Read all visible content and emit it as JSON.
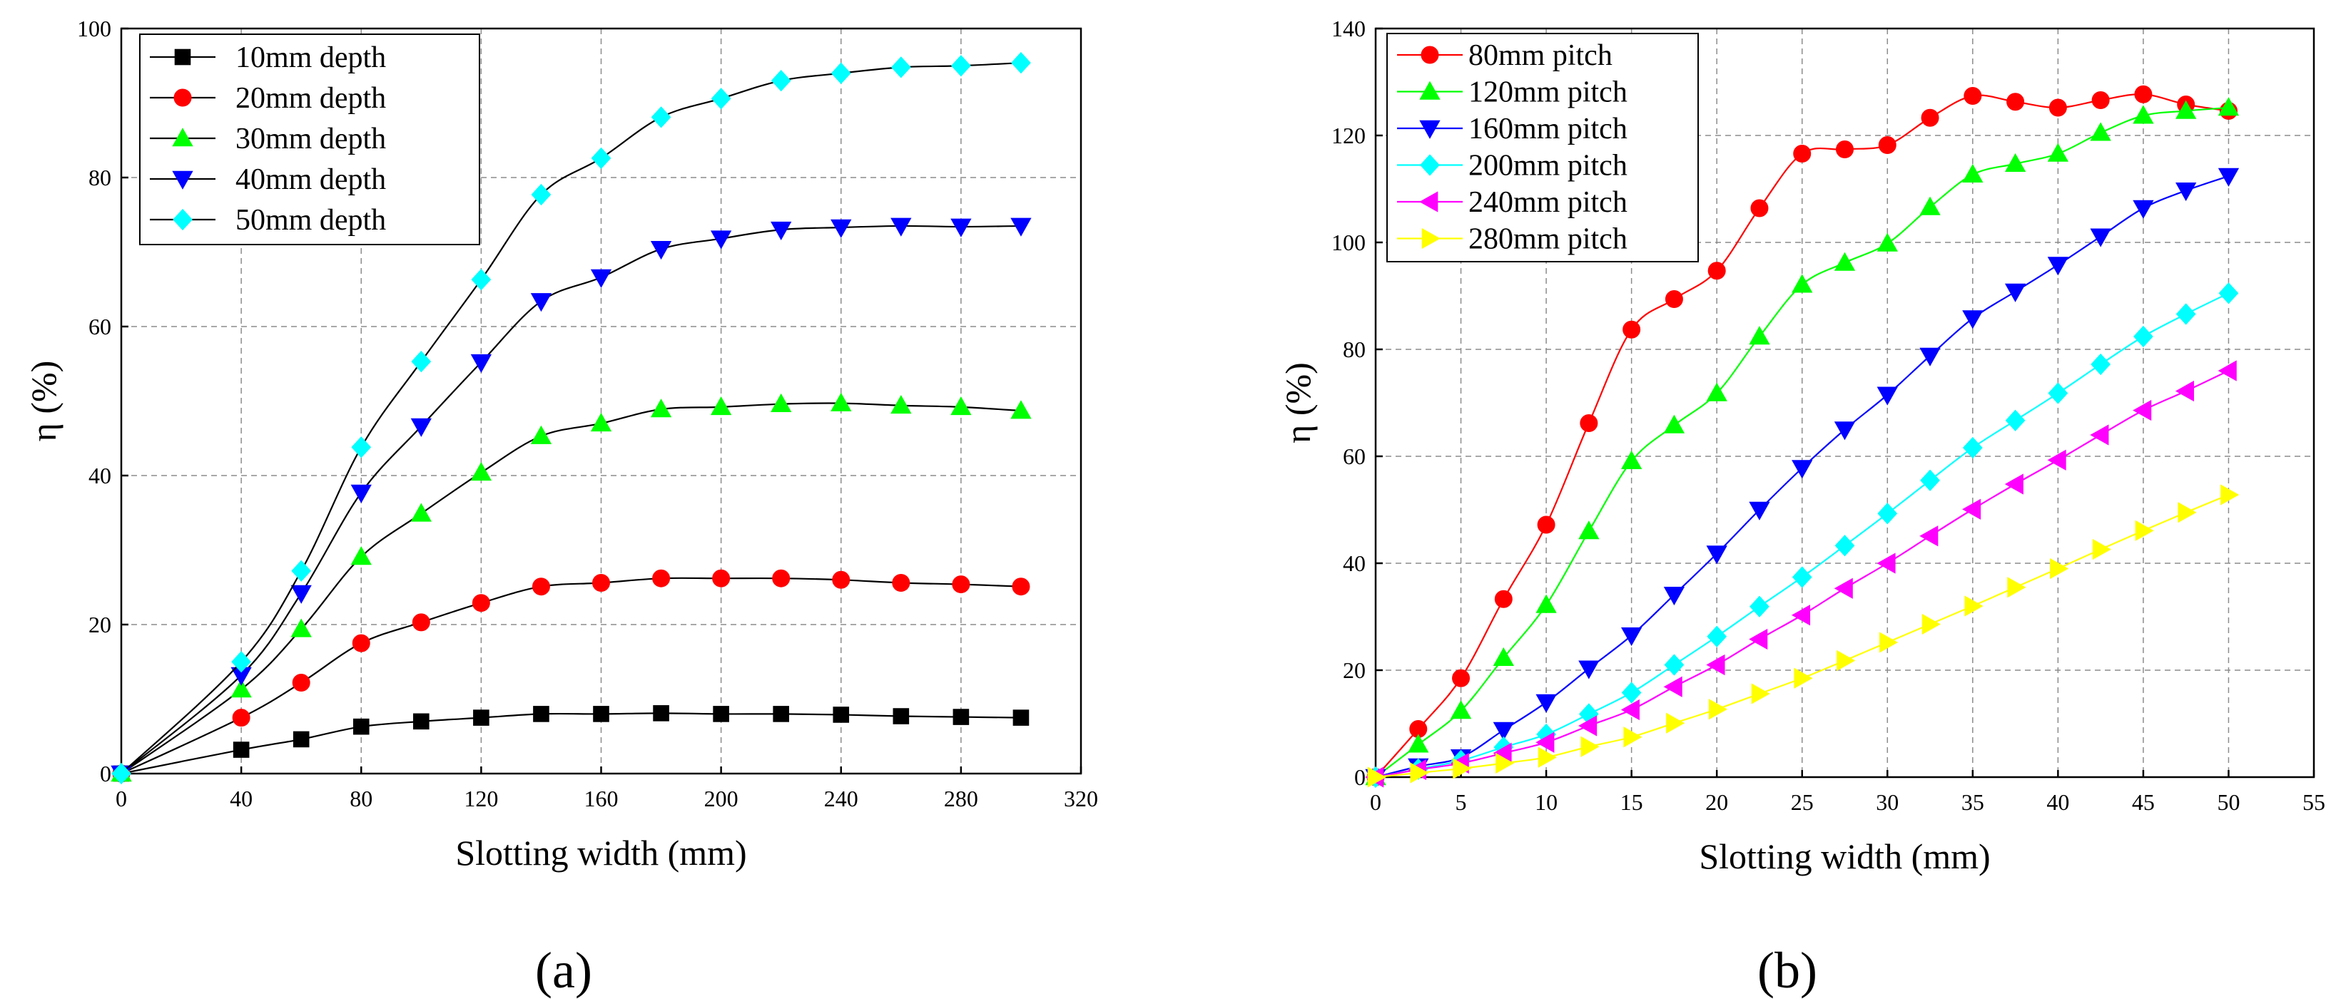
{
  "figure": {
    "panel_labels": [
      "(a)",
      "(b)"
    ]
  },
  "chart_data": [
    {
      "type": "line",
      "panel": "(a)",
      "xlabel": "Slotting width  (mm)",
      "ylabel": "η (%)",
      "xlim": [
        0,
        320
      ],
      "ylim": [
        0,
        100
      ],
      "xticks": [
        0,
        40,
        80,
        120,
        160,
        200,
        240,
        280,
        320
      ],
      "yticks": [
        0,
        20,
        40,
        60,
        80,
        100
      ],
      "grid": true,
      "legend_position": "top-left",
      "series": [
        {
          "name": "10mm  depth",
          "marker": "square",
          "color": "#000000",
          "x": [
            0,
            40,
            60,
            80,
            100,
            120,
            140,
            160,
            180,
            200,
            220,
            240,
            260,
            280,
            300
          ],
          "y": [
            0,
            3.2,
            4.6,
            6.3,
            7.0,
            7.5,
            8.0,
            8.0,
            8.1,
            8.0,
            8.0,
            7.9,
            7.7,
            7.6,
            7.5
          ]
        },
        {
          "name": "20mm  depth",
          "marker": "circle",
          "color": "#ff0000",
          "x": [
            0,
            40,
            60,
            80,
            100,
            120,
            140,
            160,
            180,
            200,
            220,
            240,
            260,
            280,
            300
          ],
          "y": [
            0,
            7.5,
            12.2,
            17.5,
            20.3,
            22.9,
            25.1,
            25.6,
            26.2,
            26.2,
            26.2,
            26.0,
            25.6,
            25.4,
            25.1
          ]
        },
        {
          "name": "30mm  depth",
          "marker": "triangle-up",
          "color": "#00ff00",
          "x": [
            0,
            40,
            60,
            80,
            100,
            120,
            140,
            160,
            180,
            200,
            220,
            240,
            260,
            280,
            300
          ],
          "y": [
            0,
            11.3,
            19.4,
            29.1,
            34.9,
            40.4,
            45.3,
            47.0,
            48.9,
            49.2,
            49.6,
            49.7,
            49.4,
            49.2,
            48.7
          ]
        },
        {
          "name": "40mm  depth",
          "marker": "triangle-down",
          "color": "#0000ff",
          "x": [
            0,
            40,
            60,
            80,
            100,
            120,
            140,
            160,
            180,
            200,
            220,
            240,
            260,
            280,
            300
          ],
          "y": [
            0,
            13.2,
            24.2,
            37.7,
            46.6,
            55.2,
            63.4,
            66.6,
            70.4,
            71.8,
            73.0,
            73.3,
            73.5,
            73.4,
            73.5
          ]
        },
        {
          "name": "50mm  depth",
          "marker": "diamond",
          "color": "#00ffff",
          "x": [
            0,
            40,
            60,
            80,
            100,
            120,
            140,
            160,
            180,
            200,
            220,
            240,
            260,
            280,
            300
          ],
          "y": [
            0,
            15.0,
            27.2,
            43.8,
            55.3,
            66.3,
            77.7,
            82.6,
            88.1,
            90.6,
            93.0,
            94.0,
            94.8,
            95.0,
            95.4
          ]
        }
      ]
    },
    {
      "type": "line",
      "panel": "(b)",
      "xlabel": "Slotting width  (mm)",
      "ylabel": "η (%)",
      "xlim": [
        0,
        55
      ],
      "ylim": [
        0,
        140
      ],
      "xticks": [
        0,
        5,
        10,
        15,
        20,
        25,
        30,
        35,
        40,
        45,
        50,
        55
      ],
      "yticks": [
        0,
        20,
        40,
        60,
        80,
        100,
        120,
        140
      ],
      "grid": true,
      "legend_position": "top-left",
      "series": [
        {
          "name": "80mm pitch",
          "marker": "circle",
          "color": "#ff0000",
          "x": [
            0,
            2.5,
            5,
            7.5,
            10,
            12.5,
            15,
            17.5,
            20,
            22.5,
            25,
            27.5,
            30,
            32.5,
            35,
            37.5,
            40,
            42.5,
            45,
            47.5,
            50
          ],
          "y": [
            0,
            9,
            18.5,
            33.3,
            47.2,
            66.2,
            83.7,
            89.4,
            94.7,
            106.4,
            116.6,
            117.4,
            118.2,
            123.3,
            127.4,
            126.3,
            125.2,
            126.6,
            127.7,
            125.8,
            124.6
          ]
        },
        {
          "name": "120mm pitch",
          "marker": "triangle-up",
          "color": "#00ff00",
          "x": [
            0,
            2.5,
            5,
            7.5,
            10,
            12.5,
            15,
            17.5,
            20,
            22.5,
            25,
            27.5,
            30,
            32.5,
            35,
            37.5,
            40,
            42.5,
            45,
            47.5,
            50
          ],
          "y": [
            0,
            6.1,
            12.4,
            22.3,
            32.2,
            46.0,
            59.1,
            65.8,
            71.8,
            82.4,
            92.1,
            96.2,
            99.8,
            106.6,
            112.7,
            114.7,
            116.6,
            120.5,
            123.7,
            124.6,
            125.2
          ]
        },
        {
          "name": "160mm pitch",
          "marker": "triangle-down",
          "color": "#0000ff",
          "x": [
            0,
            2.5,
            5,
            7.5,
            10,
            12.5,
            15,
            17.5,
            20,
            22.5,
            25,
            27.5,
            30,
            32.5,
            35,
            37.5,
            40,
            42.5,
            45,
            47.5,
            50
          ],
          "y": [
            0,
            2.0,
            3.7,
            8.8,
            14.0,
            20.3,
            26.5,
            34.1,
            41.8,
            50.0,
            57.8,
            65.0,
            71.5,
            78.8,
            85.8,
            90.8,
            95.8,
            101.1,
            106.4,
            109.7,
            112.4
          ]
        },
        {
          "name": "200mm pitch",
          "marker": "diamond",
          "color": "#00ffff",
          "x": [
            0,
            2.5,
            5,
            7.5,
            10,
            12.5,
            15,
            17.5,
            20,
            22.5,
            25,
            27.5,
            30,
            32.5,
            35,
            37.5,
            40,
            42.5,
            45,
            47.5,
            50
          ],
          "y": [
            0,
            1.5,
            3.1,
            5.6,
            8.0,
            11.8,
            15.8,
            21.0,
            26.3,
            31.9,
            37.4,
            43.3,
            49.3,
            55.5,
            61.6,
            66.7,
            71.8,
            77.2,
            82.4,
            86.6,
            90.5
          ]
        },
        {
          "name": "240mm pitch",
          "marker": "triangle-left",
          "color": "#ff00ff",
          "x": [
            0,
            2.5,
            5,
            7.5,
            10,
            12.5,
            15,
            17.5,
            20,
            22.5,
            25,
            27.5,
            30,
            32.5,
            35,
            37.5,
            40,
            42.5,
            45,
            47.5,
            50
          ],
          "y": [
            0,
            1.4,
            2.6,
            4.5,
            6.5,
            9.6,
            12.6,
            16.9,
            21.0,
            25.8,
            30.3,
            35.3,
            40.0,
            45.1,
            50.1,
            54.8,
            59.3,
            64.0,
            68.6,
            72.2,
            76.0
          ]
        },
        {
          "name": "280mm pitch",
          "marker": "triangle-right",
          "color": "#ffff00",
          "x": [
            0,
            2.5,
            5,
            7.5,
            10,
            12.5,
            15,
            17.5,
            20,
            22.5,
            25,
            27.5,
            30,
            32.5,
            35,
            37.5,
            40,
            42.5,
            45,
            47.5,
            50
          ],
          "y": [
            0,
            0.8,
            1.6,
            2.6,
            3.7,
            5.7,
            7.5,
            10.1,
            12.7,
            15.6,
            18.5,
            21.8,
            25.2,
            28.6,
            32.0,
            35.5,
            39.0,
            42.6,
            46.1,
            49.5,
            52.8
          ]
        }
      ]
    }
  ]
}
